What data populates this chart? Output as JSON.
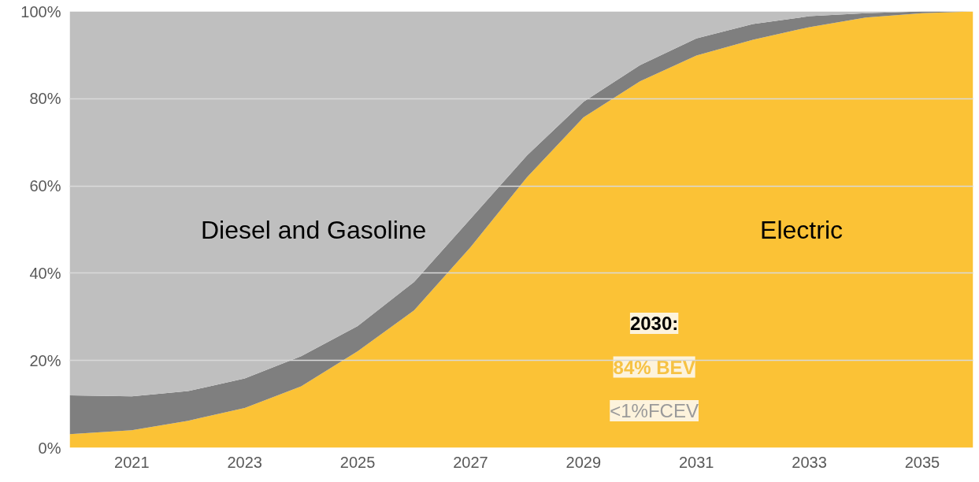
{
  "chart_data": {
    "type": "area",
    "stacked": true,
    "x": [
      2019.9,
      2021,
      2022,
      2023,
      2024,
      2025,
      2026,
      2027,
      2028,
      2029,
      2030,
      2031,
      2032,
      2033,
      2034,
      2035,
      2035.9
    ],
    "series": [
      {
        "name": "Electric",
        "color": "#fbc236",
        "values": [
          3.1,
          4.0,
          6.2,
          9.1,
          14.1,
          22.1,
          31.5,
          46.0,
          62.0,
          75.7,
          84.0,
          89.9,
          93.5,
          96.4,
          98.6,
          99.6,
          100
        ]
      },
      {
        "color": "#7f7f7f",
        "values": [
          8.9,
          7.8,
          6.8,
          6.8,
          6.9,
          5.8,
          6.5,
          6.5,
          5.0,
          3.6,
          3.7,
          3.9,
          3.6,
          2.5,
          1.0,
          0.4,
          0
        ]
      },
      {
        "name": "Diesel and Gasoline",
        "color": "#bfbfbf",
        "values": [
          88.0,
          88.2,
          87.0,
          84.1,
          79.0,
          72.1,
          62.0,
          47.5,
          33.0,
          20.7,
          12.3,
          6.2,
          2.9,
          1.1,
          0.4,
          0,
          0
        ]
      }
    ],
    "xlim": [
      2019.9,
      2035.9
    ],
    "xticks": [
      2021,
      2023,
      2025,
      2027,
      2029,
      2031,
      2033,
      2035
    ],
    "ylim": [
      0,
      100
    ],
    "yticks": [
      {
        "value": 0,
        "label": "0%"
      },
      {
        "value": 20,
        "label": "20%"
      },
      {
        "value": 40,
        "label": "40%"
      },
      {
        "value": 60,
        "label": "60%"
      },
      {
        "value": 80,
        "label": "80%"
      },
      {
        "value": 100,
        "label": "100%"
      }
    ],
    "grid": "y",
    "annotations": [
      "2030:",
      "84% BEV",
      "<1%FCEV"
    ]
  }
}
